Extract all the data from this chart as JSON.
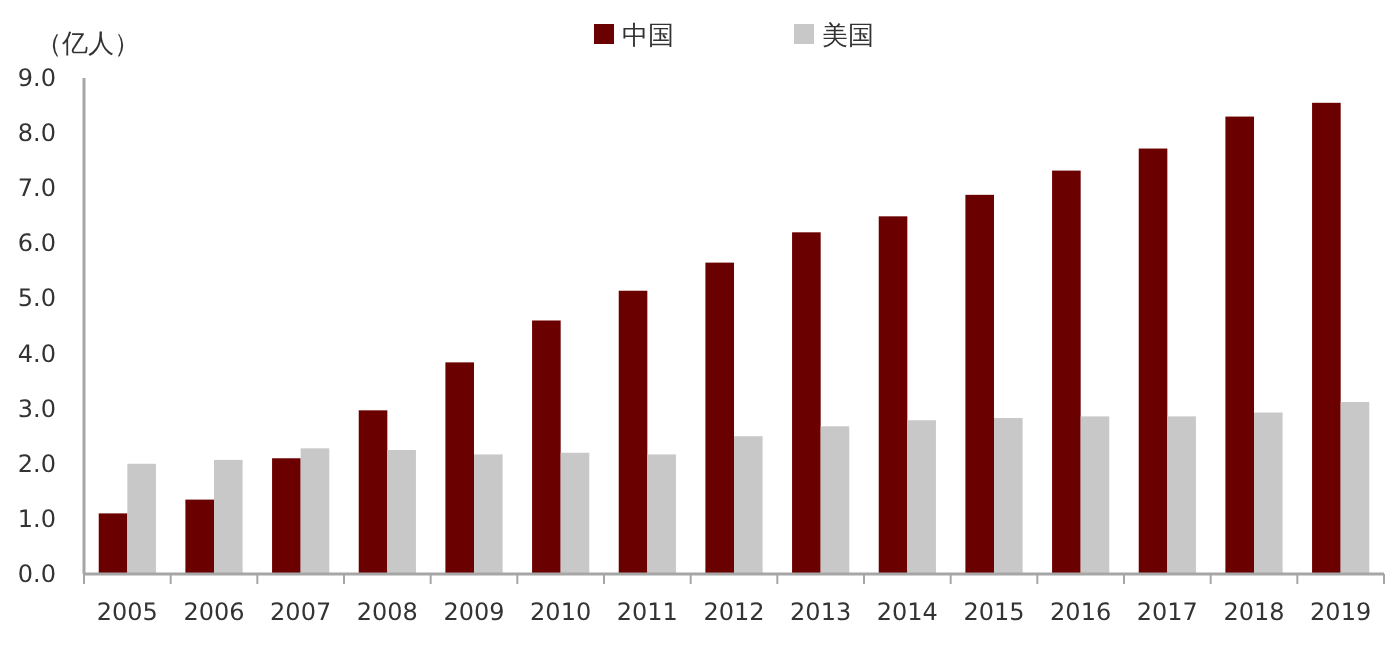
{
  "chart_data": {
    "type": "bar",
    "ylabel": "（亿人）",
    "categories": [
      "2005",
      "2006",
      "2007",
      "2008",
      "2009",
      "2010",
      "2011",
      "2012",
      "2013",
      "2014",
      "2015",
      "2016",
      "2017",
      "2018",
      "2019"
    ],
    "series": [
      {
        "name": "中国",
        "color": "#6b0000",
        "values": [
          1.1,
          1.35,
          2.1,
          2.97,
          3.84,
          4.6,
          5.14,
          5.65,
          6.2,
          6.49,
          6.88,
          7.32,
          7.72,
          8.3,
          8.55
        ]
      },
      {
        "name": "美国",
        "color": "#c8c8c8",
        "values": [
          2.0,
          2.07,
          2.28,
          2.25,
          2.17,
          2.2,
          2.17,
          2.5,
          2.68,
          2.79,
          2.83,
          2.86,
          2.86,
          2.93,
          3.12
        ]
      }
    ],
    "ylim": [
      0,
      9
    ],
    "yticks": [
      {
        "value": 0,
        "label": "0.0"
      },
      {
        "value": 1,
        "label": "1.0"
      },
      {
        "value": 2,
        "label": "2.0"
      },
      {
        "value": 3,
        "label": "3.0"
      },
      {
        "value": 4,
        "label": "4.0"
      },
      {
        "value": 5,
        "label": "5.0"
      },
      {
        "value": 6,
        "label": "6.0"
      },
      {
        "value": 7,
        "label": "7.0"
      },
      {
        "value": 8,
        "label": "8.0"
      },
      {
        "value": 9,
        "label": "9.0"
      }
    ],
    "grid": false,
    "legend": "top"
  }
}
